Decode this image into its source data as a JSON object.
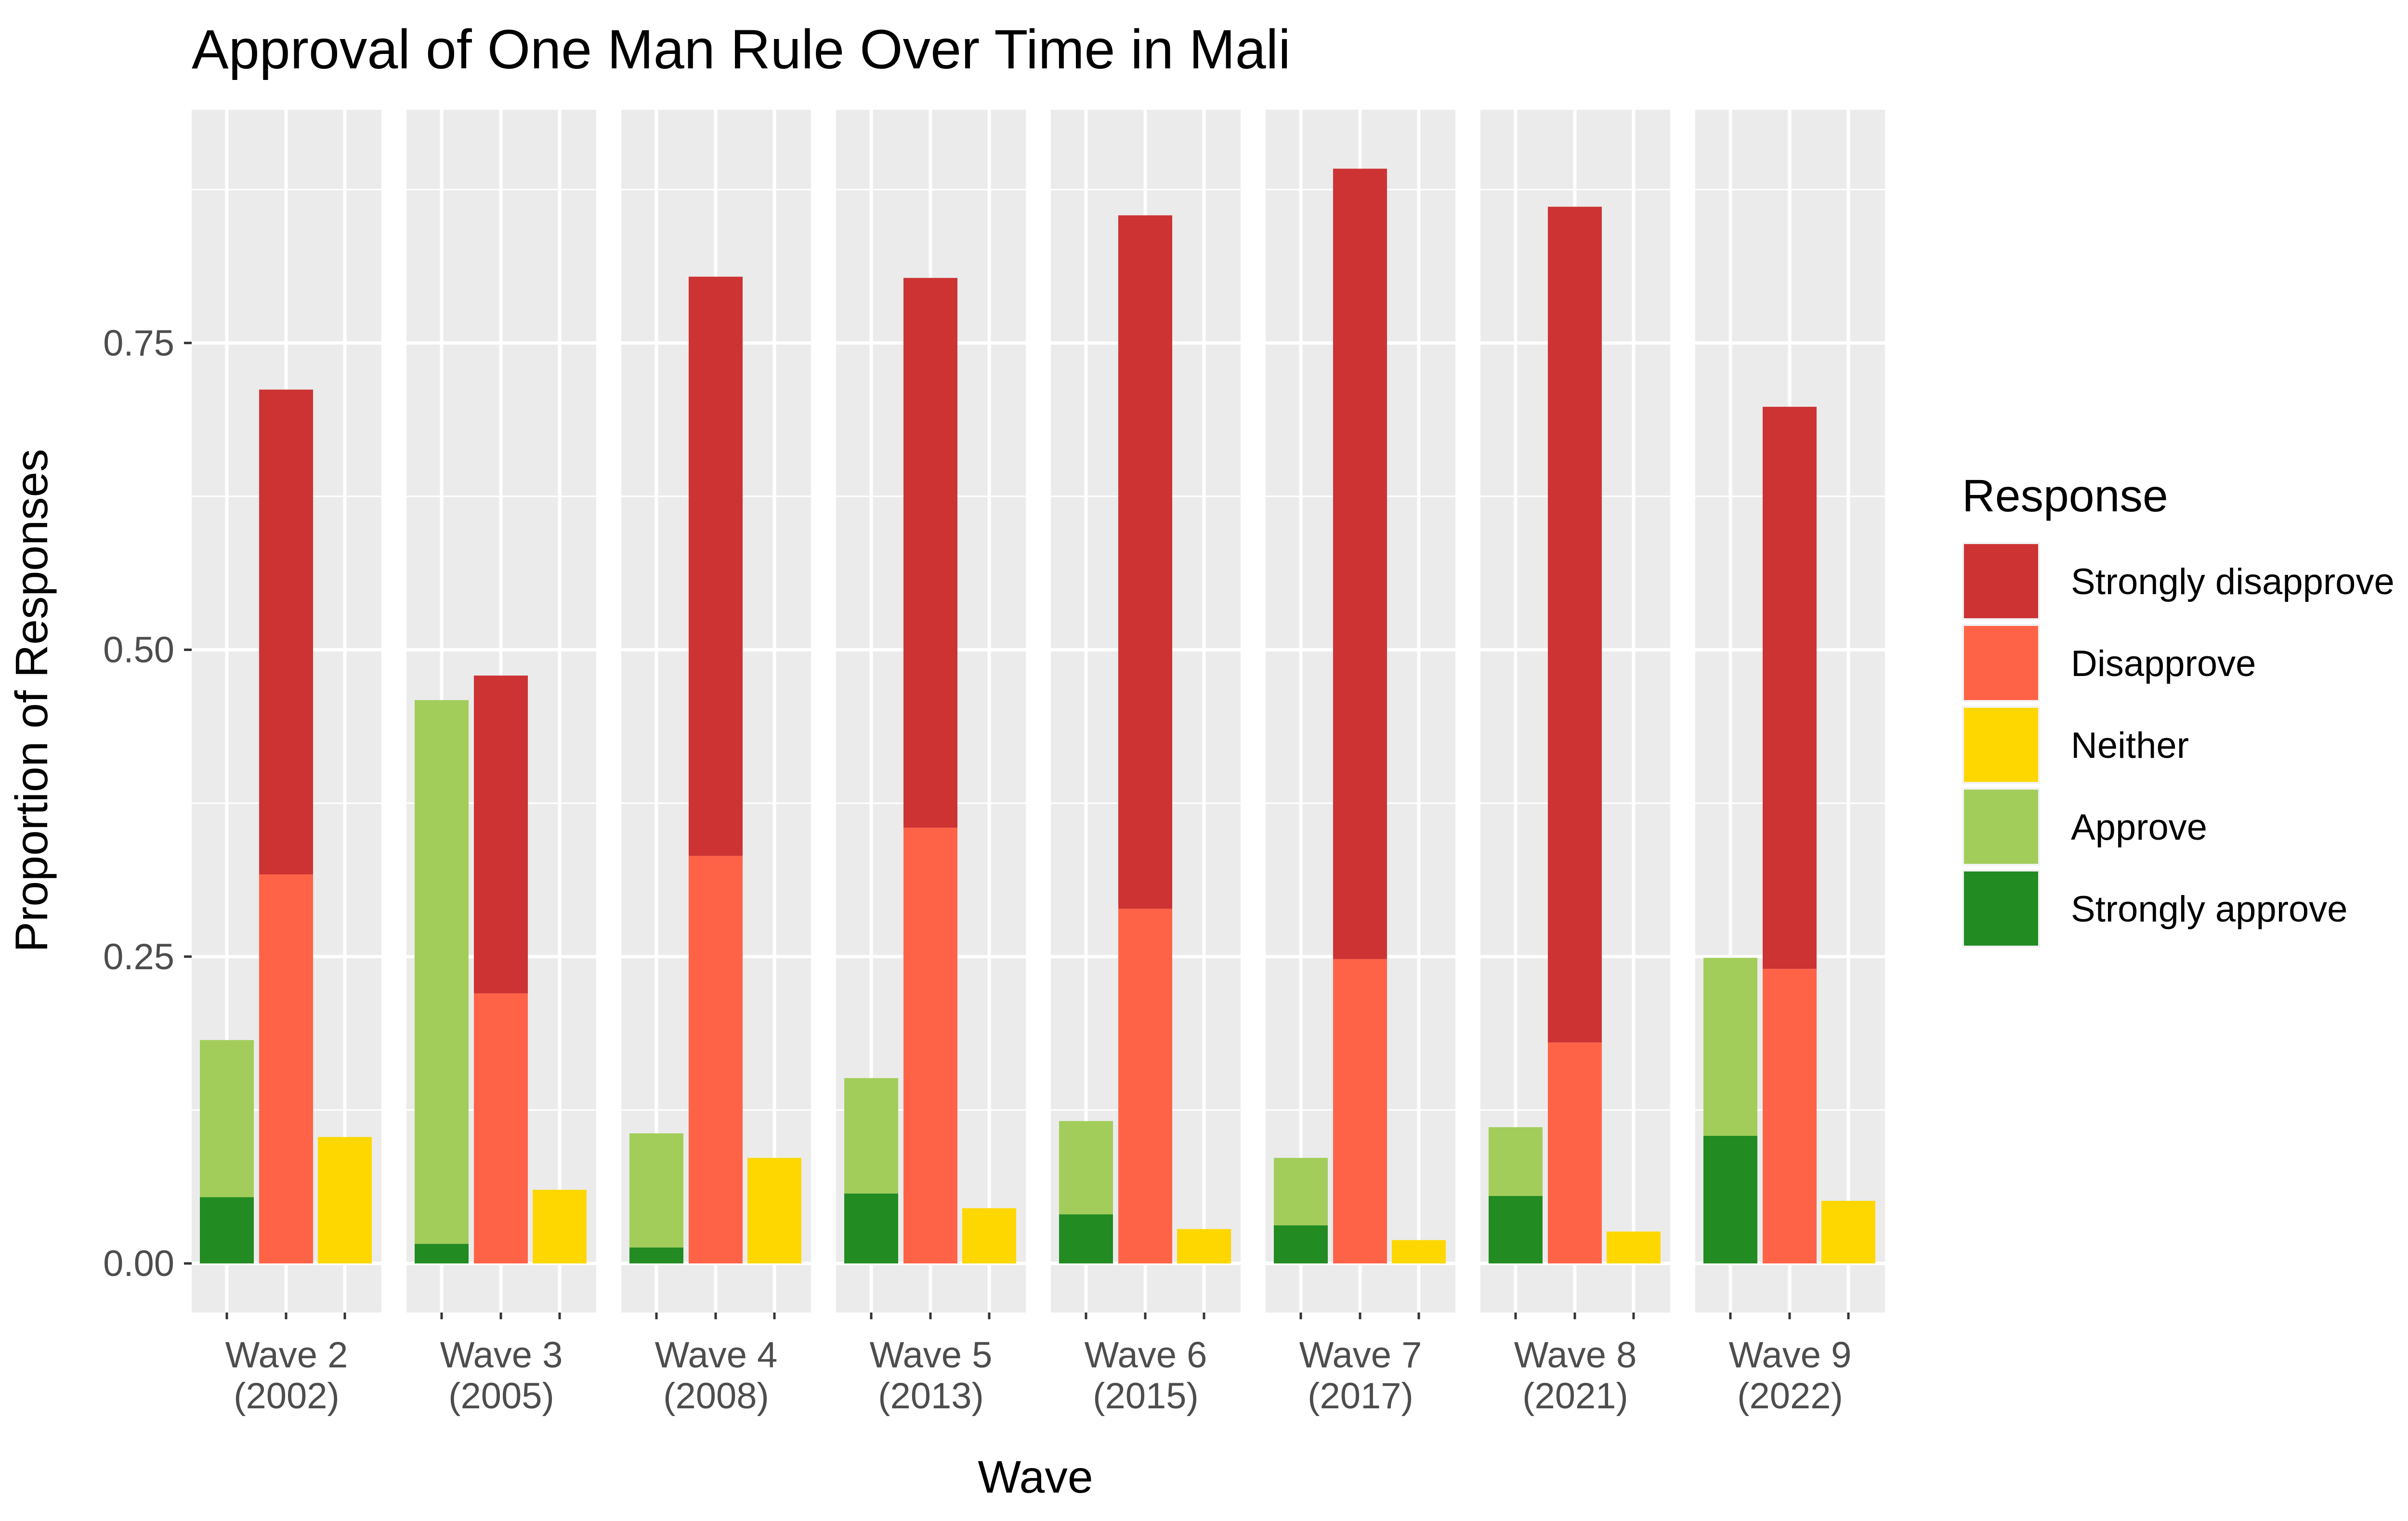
{
  "chart_data": {
    "type": "bar",
    "title": "Approval of One Man Rule Over Time in Mali",
    "xlabel": "Wave",
    "ylabel": "Proportion of Responses",
    "ylim": [
      -0.04,
      0.94
    ],
    "yticks": [
      0.0,
      0.25,
      0.5,
      0.75
    ],
    "ytick_labels": [
      "0.00",
      "0.25",
      "0.50",
      "0.75"
    ],
    "grid": true,
    "facets": [
      {
        "label_line1": "Wave 2",
        "label_line2": "(2002)"
      },
      {
        "label_line1": "Wave 3",
        "label_line2": "(2005)"
      },
      {
        "label_line1": "Wave 4",
        "label_line2": "(2008)"
      },
      {
        "label_line1": "Wave 5",
        "label_line2": "(2013)"
      },
      {
        "label_line1": "Wave 6",
        "label_line2": "(2015)"
      },
      {
        "label_line1": "Wave 7",
        "label_line2": "(2017)"
      },
      {
        "label_line1": "Wave 8",
        "label_line2": "(2021)"
      },
      {
        "label_line1": "Wave 9",
        "label_line2": "(2022)"
      }
    ],
    "series": [
      {
        "name": "Strongly approve",
        "color": "#228B22",
        "values": [
          0.054,
          0.016,
          0.013,
          0.057,
          0.04,
          0.031,
          0.055,
          0.104
        ]
      },
      {
        "name": "Approve",
        "color": "#A2CD5A",
        "values": [
          0.128,
          0.443,
          0.093,
          0.094,
          0.076,
          0.055,
          0.056,
          0.145
        ]
      },
      {
        "name": "Disapprove",
        "color": "#FF6347",
        "values": [
          0.317,
          0.22,
          0.332,
          0.355,
          0.289,
          0.248,
          0.18,
          0.24
        ]
      },
      {
        "name": "Strongly disapprove",
        "color": "#CD3333",
        "values": [
          0.395,
          0.259,
          0.472,
          0.448,
          0.565,
          0.644,
          0.681,
          0.458
        ]
      },
      {
        "name": "Neither",
        "color": "#FFD700",
        "values": [
          0.103,
          0.06,
          0.086,
          0.045,
          0.028,
          0.019,
          0.026,
          0.051
        ]
      }
    ],
    "bar_groups": [
      {
        "slot": 0,
        "stack": [
          "Strongly approve",
          "Approve"
        ]
      },
      {
        "slot": 1,
        "stack": [
          "Disapprove",
          "Strongly disapprove"
        ]
      },
      {
        "slot": 2,
        "stack": [
          "Neither"
        ]
      }
    ],
    "legend": {
      "title": "Response",
      "position": "right",
      "entries": [
        {
          "label": "Strongly disapprove",
          "color": "#CD3333"
        },
        {
          "label": "Disapprove",
          "color": "#FF6347"
        },
        {
          "label": "Neither",
          "color": "#FFD700"
        },
        {
          "label": "Approve",
          "color": "#A2CD5A"
        },
        {
          "label": "Strongly approve",
          "color": "#228B22"
        }
      ]
    },
    "panel_background": "#EBEBEB",
    "grid_color": "#FFFFFF"
  }
}
